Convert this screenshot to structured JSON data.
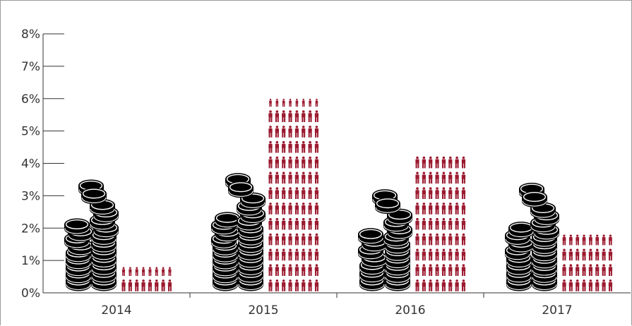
{
  "chart_data": {
    "type": "bar",
    "title": "",
    "xlabel": "",
    "ylabel": "",
    "categories": [
      "2014",
      "2015",
      "2016",
      "2017"
    ],
    "ylim": [
      0,
      8
    ],
    "yticks": [
      "0%",
      "1%",
      "2%",
      "3%",
      "4%",
      "5%",
      "6%",
      "7%",
      "8%"
    ],
    "series": [
      {
        "icon": "coin-stack-icon",
        "color": "#000000",
        "values": [
          3.5,
          3.7,
          3.2,
          3.4
        ]
      },
      {
        "icon": "people-icon",
        "color": "#9b1b30",
        "values": [
          0.8,
          6.0,
          4.3,
          1.8
        ]
      }
    ],
    "grid": false,
    "legend": "none"
  }
}
